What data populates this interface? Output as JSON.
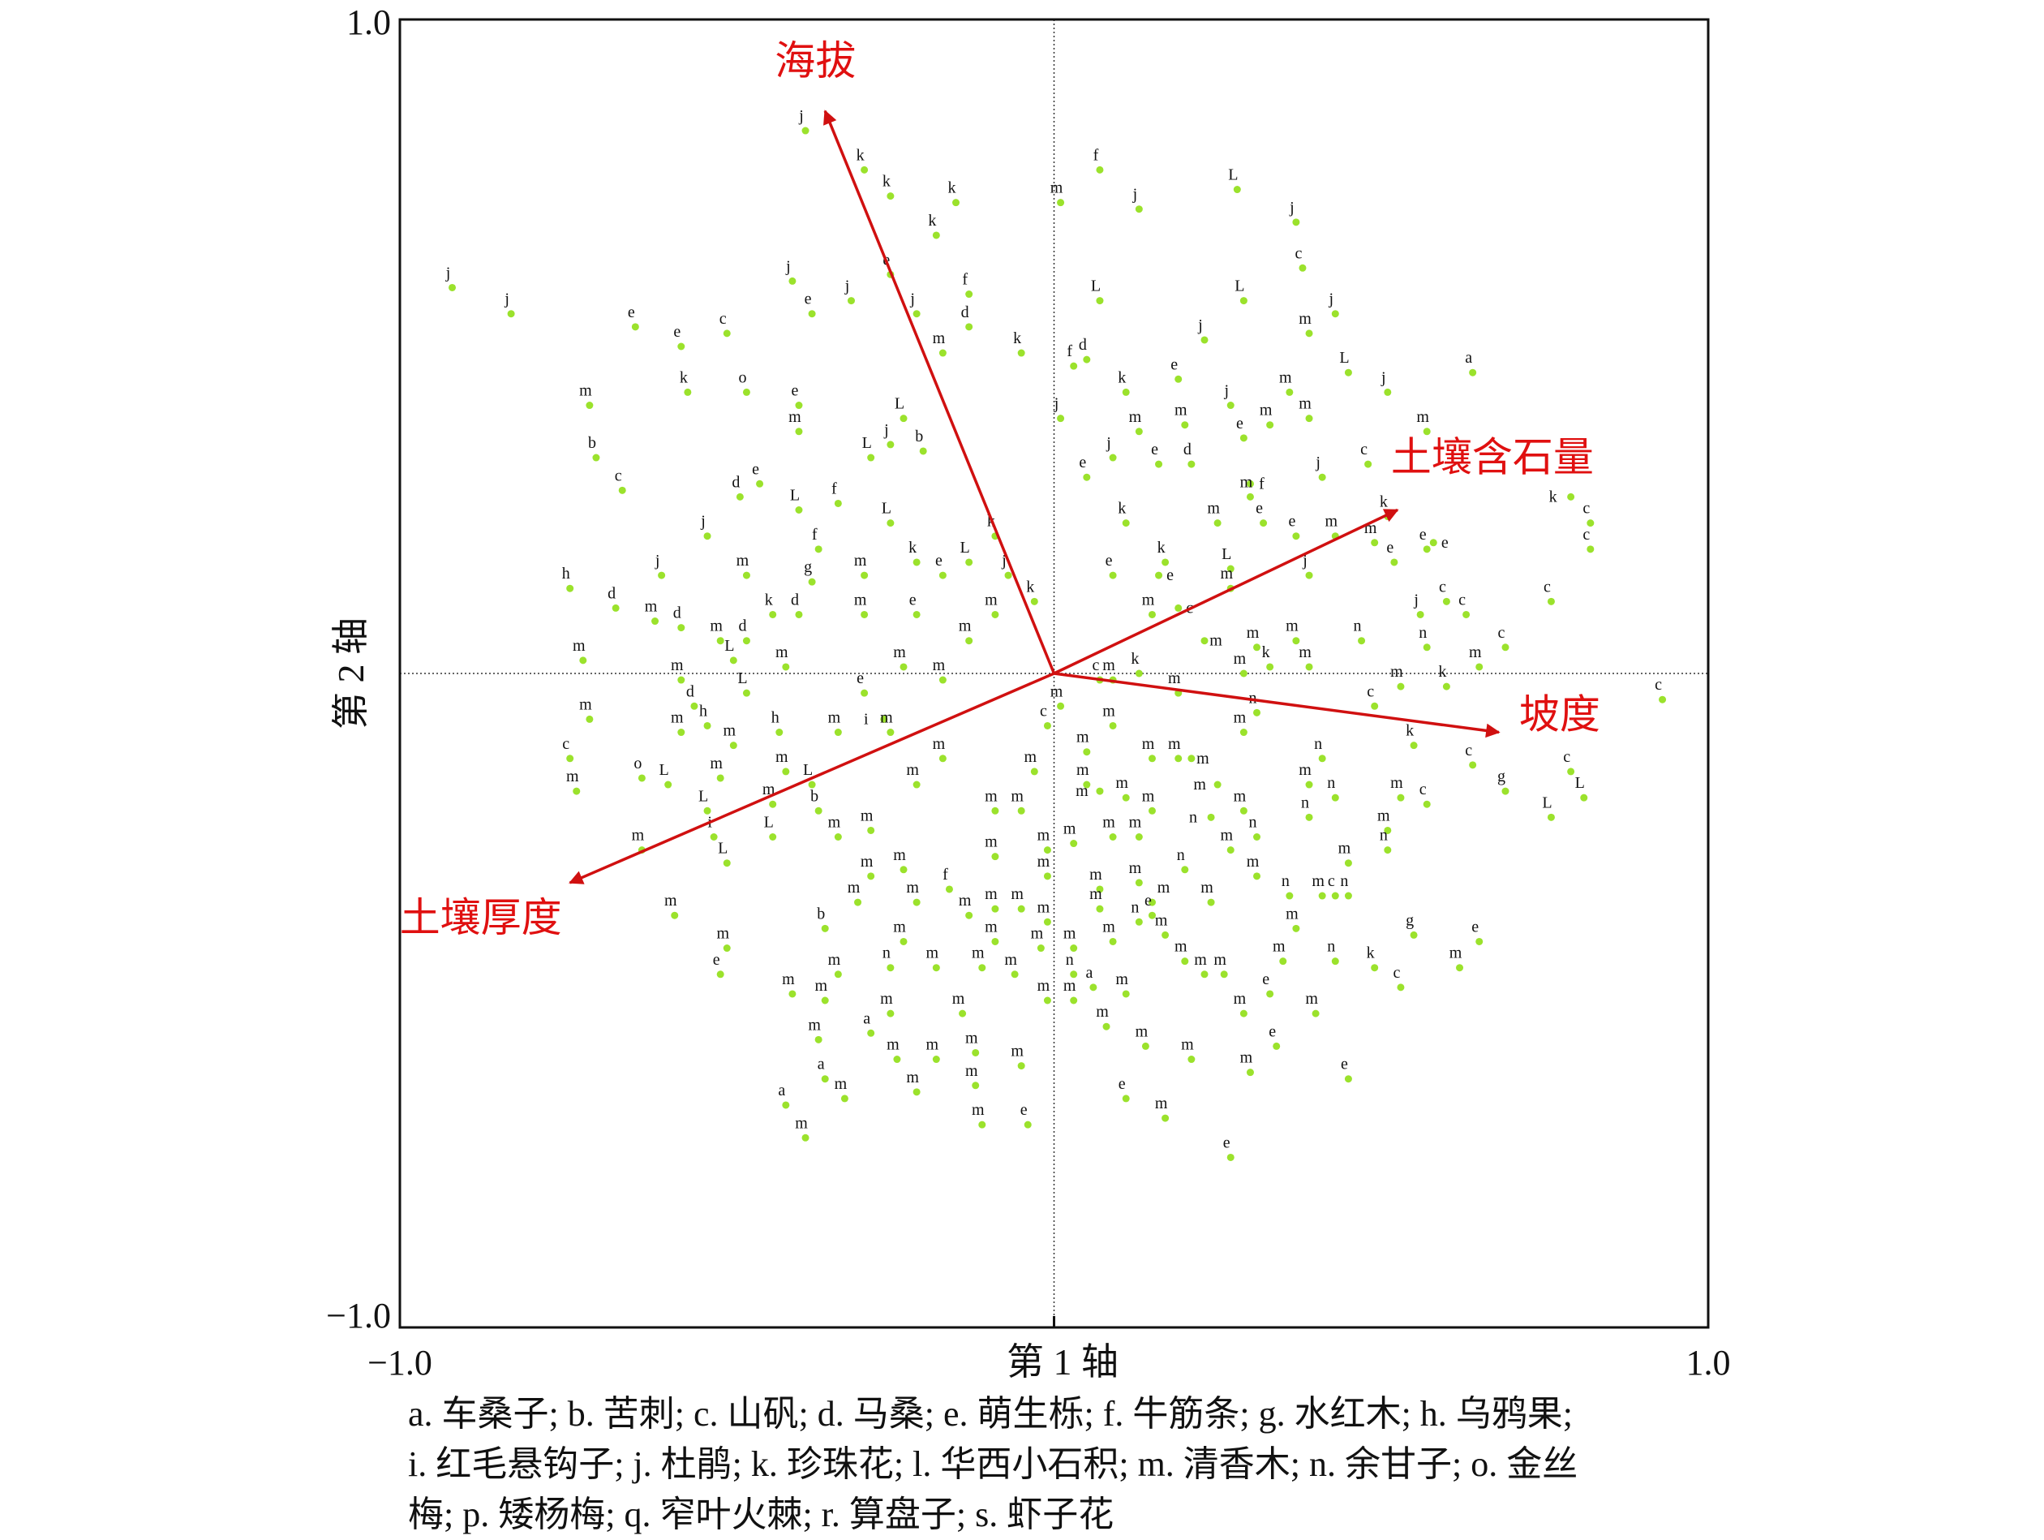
{
  "chart_data": {
    "type": "scatter",
    "subtype": "CCA ordination biplot",
    "xlabel": "第 1 轴",
    "ylabel": "第 2 轴",
    "xlim": [
      -1.0,
      1.0
    ],
    "ylim": [
      -1.0,
      1.0
    ],
    "x_ticks": [
      "−1.0",
      "1.0"
    ],
    "y_ticks": [
      "1.0",
      "−1.0"
    ],
    "grid": false,
    "colors": {
      "point": "#9be22c",
      "arrow": "#d01010",
      "label": "#e01010",
      "frame": "#111111"
    },
    "env_vectors": [
      {
        "name": "海拔",
        "x": -0.35,
        "y": 0.86
      },
      {
        "name": "土壤含石量",
        "x": 0.525,
        "y": 0.25
      },
      {
        "name": "坡度",
        "x": 0.68,
        "y": -0.09
      },
      {
        "name": "土壤厚度",
        "x": -0.74,
        "y": -0.32
      }
    ],
    "points": [
      [
        -0.92,
        0.59,
        "j"
      ],
      [
        -0.83,
        0.55,
        "j"
      ],
      [
        -0.38,
        0.83,
        "j"
      ],
      [
        -0.29,
        0.77,
        "k"
      ],
      [
        -0.25,
        0.73,
        "k"
      ],
      [
        -0.15,
        0.72,
        "k"
      ],
      [
        -0.18,
        0.67,
        "k"
      ],
      [
        0.07,
        0.77,
        "f"
      ],
      [
        0.28,
        0.74,
        "L"
      ],
      [
        0.37,
        0.69,
        "j"
      ],
      [
        0.01,
        0.72,
        "m"
      ],
      [
        0.13,
        0.71,
        "j"
      ],
      [
        -0.64,
        0.53,
        "e"
      ],
      [
        -0.57,
        0.5,
        "e"
      ],
      [
        -0.71,
        0.41,
        "m"
      ],
      [
        -0.7,
        0.33,
        "b"
      ],
      [
        -0.66,
        0.28,
        "c"
      ],
      [
        -0.74,
        0.13,
        "h"
      ],
      [
        -0.67,
        0.1,
        "d"
      ],
      [
        -0.72,
        0.02,
        "m"
      ],
      [
        -0.71,
        -0.07,
        "m"
      ],
      [
        -0.74,
        -0.13,
        "c"
      ],
      [
        -0.73,
        -0.18,
        "m"
      ],
      [
        -0.63,
        -0.27,
        "m"
      ],
      [
        -0.58,
        -0.37,
        "m"
      ],
      [
        -0.5,
        -0.42,
        "m"
      ],
      [
        -0.51,
        -0.46,
        "e"
      ],
      [
        -0.4,
        -0.49,
        "m"
      ],
      [
        -0.41,
        -0.66,
        "a"
      ],
      [
        -0.38,
        -0.71,
        "m"
      ],
      [
        -0.04,
        -0.69,
        "e"
      ],
      [
        0.27,
        -0.74,
        "e"
      ],
      [
        0.45,
        -0.62,
        "e"
      ],
      [
        0.65,
        -0.41,
        "e"
      ],
      [
        0.62,
        -0.45,
        "m"
      ],
      [
        0.55,
        -0.4,
        "g"
      ],
      [
        0.53,
        -0.48,
        "c"
      ],
      [
        0.64,
        0.46,
        "a"
      ],
      [
        0.82,
        0.23,
        "c"
      ],
      [
        0.82,
        0.19,
        "c"
      ],
      [
        0.79,
        0.27,
        "k"
      ],
      [
        0.93,
        -0.04,
        "c"
      ],
      [
        0.76,
        0.11,
        "c"
      ],
      [
        0.81,
        -0.19,
        "L"
      ],
      [
        0.76,
        -0.22,
        "L"
      ],
      [
        0.79,
        -0.15,
        "c"
      ],
      [
        0.69,
        -0.18,
        "g"
      ],
      [
        0.65,
        0.01,
        "m"
      ],
      [
        0.69,
        0.04,
        "c"
      ],
      [
        0.57,
        0.37,
        "m"
      ],
      [
        0.45,
        0.46,
        "L"
      ],
      [
        0.51,
        0.43,
        "j"
      ],
      [
        0.43,
        0.55,
        "j"
      ],
      [
        0.38,
        0.62,
        "c"
      ],
      [
        0.39,
        0.52,
        "m"
      ],
      [
        0.15,
        -0.37,
        "e"
      ],
      [
        0.01,
        -0.05,
        "m"
      ],
      [
        0.05,
        -0.17,
        "m"
      ],
      [
        -0.01,
        -0.27,
        "m"
      ],
      [
        0.07,
        -0.33,
        "m"
      ],
      [
        -0.09,
        -0.21,
        "m"
      ],
      [
        -0.17,
        -0.13,
        "m"
      ],
      [
        -0.21,
        -0.35,
        "m"
      ],
      [
        -0.09,
        -0.41,
        "m"
      ],
      [
        0.03,
        -0.5,
        "m"
      ],
      [
        0.15,
        -0.21,
        "m"
      ],
      [
        0.19,
        -0.13,
        "m"
      ],
      [
        0.29,
        -0.09,
        "m"
      ],
      [
        0.31,
        -0.25,
        "n"
      ],
      [
        0.41,
        -0.13,
        "n"
      ],
      [
        0.43,
        -0.19,
        "n"
      ],
      [
        0.45,
        -0.29,
        "m"
      ],
      [
        0.51,
        -0.27,
        "n"
      ],
      [
        0.55,
        -0.11,
        "k"
      ],
      [
        0.49,
        -0.05,
        "c"
      ],
      [
        0.6,
        -0.02,
        "k"
      ],
      [
        0.47,
        0.05,
        "n"
      ],
      [
        0.37,
        0.05,
        "m"
      ],
      [
        0.27,
        0.13,
        "m"
      ],
      [
        0.37,
        0.21,
        "e"
      ],
      [
        0.39,
        0.15,
        "j"
      ],
      [
        0.51,
        0.24,
        "k"
      ],
      [
        0.57,
        0.19,
        "e"
      ],
      [
        0.43,
        0.21,
        "m"
      ],
      [
        0.27,
        0.16,
        "L"
      ],
      [
        0.15,
        0.09,
        "m"
      ],
      [
        0.09,
        0.15,
        "e"
      ],
      [
        0.11,
        0.23,
        "k"
      ],
      [
        0.05,
        0.3,
        "e"
      ],
      [
        0.09,
        0.33,
        "j"
      ],
      [
        0.13,
        0.37,
        "m"
      ],
      [
        0.11,
        0.43,
        "k"
      ],
      [
        0.19,
        0.45,
        "e"
      ],
      [
        0.29,
        0.57,
        "L"
      ],
      [
        0.23,
        0.51,
        "j"
      ],
      [
        0.05,
        0.48,
        "d"
      ],
      [
        0.03,
        0.47,
        "f"
      ],
      [
        0.01,
        0.39,
        "j"
      ],
      [
        0.07,
        0.57,
        "L"
      ],
      [
        -0.05,
        0.49,
        "k"
      ],
      [
        -0.13,
        0.53,
        "d"
      ],
      [
        -0.17,
        0.49,
        "m"
      ],
      [
        -0.13,
        0.58,
        "f"
      ],
      [
        -0.21,
        0.55,
        "j"
      ],
      [
        -0.25,
        0.61,
        "e"
      ],
      [
        -0.31,
        0.57,
        "j"
      ],
      [
        -0.37,
        0.55,
        "e"
      ],
      [
        -0.4,
        0.6,
        "j"
      ],
      [
        -0.5,
        0.52,
        "c"
      ],
      [
        -0.56,
        0.43,
        "k"
      ],
      [
        -0.47,
        0.43,
        "o"
      ],
      [
        -0.39,
        0.41,
        "e"
      ],
      [
        -0.39,
        0.37,
        "m"
      ],
      [
        -0.23,
        0.39,
        "L"
      ],
      [
        -0.25,
        0.35,
        "j"
      ],
      [
        -0.28,
        0.33,
        "L"
      ],
      [
        -0.2,
        0.34,
        "b"
      ],
      [
        -0.45,
        0.29,
        "e"
      ],
      [
        -0.48,
        0.27,
        "d"
      ],
      [
        -0.39,
        0.25,
        "L"
      ],
      [
        -0.33,
        0.26,
        "f"
      ],
      [
        -0.53,
        0.21,
        "j"
      ],
      [
        -0.36,
        0.19,
        "f"
      ],
      [
        -0.6,
        0.15,
        "j"
      ],
      [
        -0.47,
        0.15,
        "m"
      ],
      [
        -0.37,
        0.14,
        "g"
      ],
      [
        -0.29,
        0.15,
        "m"
      ],
      [
        -0.25,
        0.23,
        "L"
      ],
      [
        -0.21,
        0.17,
        "k"
      ],
      [
        -0.17,
        0.15,
        "e"
      ],
      [
        -0.13,
        0.17,
        "L"
      ],
      [
        -0.09,
        0.21,
        "k"
      ],
      [
        -0.07,
        0.15,
        "j"
      ],
      [
        -0.09,
        0.09,
        "m"
      ],
      [
        -0.03,
        0.11,
        "k"
      ],
      [
        -0.13,
        0.05,
        "m"
      ],
      [
        -0.21,
        0.09,
        "e"
      ],
      [
        -0.29,
        0.09,
        "m"
      ],
      [
        -0.39,
        0.09,
        "d"
      ],
      [
        -0.43,
        0.09,
        "k"
      ],
      [
        -0.51,
        0.05,
        "m"
      ],
      [
        -0.47,
        0.05,
        "d"
      ],
      [
        -0.57,
        0.07,
        "d"
      ],
      [
        -0.61,
        0.08,
        "m"
      ],
      [
        -0.49,
        0.02,
        "L"
      ],
      [
        -0.57,
        -0.01,
        "m"
      ],
      [
        -0.55,
        -0.05,
        "d"
      ],
      [
        -0.47,
        -0.03,
        "L"
      ],
      [
        -0.41,
        0.01,
        "m"
      ],
      [
        -0.53,
        -0.08,
        "h"
      ],
      [
        -0.57,
        -0.09,
        "m"
      ],
      [
        -0.49,
        -0.11,
        "m"
      ],
      [
        -0.42,
        -0.09,
        "h"
      ],
      [
        -0.41,
        -0.15,
        "m"
      ],
      [
        -0.37,
        -0.17,
        "L"
      ],
      [
        -0.33,
        -0.09,
        "m"
      ],
      [
        -0.29,
        -0.03,
        "e"
      ],
      [
        -0.23,
        0.01,
        "m"
      ],
      [
        -0.17,
        -0.01,
        "m"
      ],
      [
        -0.25,
        -0.09,
        "m"
      ],
      [
        -0.26,
        -0.07,
        "i"
      ],
      [
        -0.21,
        -0.17,
        "m"
      ],
      [
        -0.59,
        -0.17,
        "L"
      ],
      [
        -0.53,
        -0.21,
        "L"
      ],
      [
        -0.63,
        -0.16,
        "o"
      ],
      [
        -0.52,
        -0.25,
        "i"
      ],
      [
        -0.5,
        -0.29,
        "L"
      ],
      [
        -0.43,
        -0.25,
        "L"
      ],
      [
        -0.51,
        -0.16,
        "m"
      ],
      [
        -0.43,
        -0.2,
        "m"
      ],
      [
        -0.36,
        -0.21,
        "b"
      ],
      [
        -0.33,
        -0.25,
        "m"
      ],
      [
        -0.28,
        -0.24,
        "m"
      ],
      [
        -0.28,
        -0.31,
        "m"
      ],
      [
        -0.23,
        -0.3,
        "m"
      ],
      [
        -0.3,
        -0.35,
        "m"
      ],
      [
        -0.16,
        -0.33,
        "f"
      ],
      [
        -0.35,
        -0.39,
        "b"
      ],
      [
        -0.23,
        -0.41,
        "m"
      ],
      [
        -0.18,
        -0.45,
        "m"
      ],
      [
        -0.25,
        -0.45,
        "n"
      ],
      [
        -0.33,
        -0.46,
        "m"
      ],
      [
        -0.35,
        -0.5,
        "m"
      ],
      [
        -0.25,
        -0.52,
        "m"
      ],
      [
        -0.14,
        -0.52,
        "m"
      ],
      [
        -0.28,
        -0.55,
        "a"
      ],
      [
        -0.36,
        -0.56,
        "m"
      ],
      [
        -0.24,
        -0.59,
        "m"
      ],
      [
        -0.18,
        -0.59,
        "m"
      ],
      [
        -0.12,
        -0.58,
        "m"
      ],
      [
        -0.05,
        -0.6,
        "m"
      ],
      [
        -0.35,
        -0.62,
        "a"
      ],
      [
        -0.21,
        -0.64,
        "m"
      ],
      [
        -0.12,
        -0.63,
        "m"
      ],
      [
        -0.32,
        -0.65,
        "m"
      ],
      [
        -0.11,
        -0.69,
        "m"
      ],
      [
        -0.01,
        -0.38,
        "m"
      ],
      [
        0.03,
        -0.46,
        "n"
      ],
      [
        0.06,
        -0.48,
        "a"
      ],
      [
        0.11,
        -0.49,
        "m"
      ],
      [
        0.08,
        -0.54,
        "m"
      ],
      [
        0.14,
        -0.57,
        "m"
      ],
      [
        0.11,
        -0.65,
        "e"
      ],
      [
        0.17,
        -0.68,
        "m"
      ],
      [
        0.21,
        -0.59,
        "m"
      ],
      [
        0.3,
        -0.61,
        "m"
      ],
      [
        0.34,
        -0.57,
        "e"
      ],
      [
        0.4,
        -0.52,
        "m"
      ],
      [
        0.29,
        -0.52,
        "m"
      ],
      [
        0.33,
        -0.49,
        "e"
      ],
      [
        0.35,
        -0.44,
        "m"
      ],
      [
        0.23,
        -0.46,
        "m"
      ],
      [
        0.26,
        -0.46,
        "m"
      ],
      [
        0.2,
        -0.44,
        "m"
      ],
      [
        0.17,
        -0.4,
        "m"
      ],
      [
        0.13,
        -0.38,
        "n"
      ],
      [
        0.24,
        -0.35,
        "m"
      ],
      [
        0.31,
        -0.31,
        "m"
      ],
      [
        0.36,
        -0.34,
        "n"
      ],
      [
        0.43,
        -0.34,
        "c"
      ],
      [
        0.45,
        -0.34,
        "n"
      ],
      [
        0.49,
        -0.45,
        "k"
      ],
      [
        0.43,
        -0.44,
        "n"
      ],
      [
        0.37,
        -0.39,
        "m"
      ],
      [
        0.41,
        -0.34,
        "m"
      ],
      [
        0.2,
        -0.3,
        "n"
      ],
      [
        0.27,
        -0.27,
        "m"
      ],
      [
        0.29,
        -0.21,
        "m"
      ],
      [
        0.39,
        -0.17,
        "m"
      ],
      [
        0.39,
        -0.22,
        "n"
      ],
      [
        0.51,
        -0.24,
        "m"
      ],
      [
        0.57,
        -0.2,
        "c"
      ],
      [
        0.53,
        -0.19,
        "m"
      ],
      [
        0.64,
        -0.14,
        "c"
      ],
      [
        0.53,
        -0.02,
        "m"
      ],
      [
        0.57,
        0.04,
        "n"
      ],
      [
        0.6,
        0.11,
        "c"
      ],
      [
        0.56,
        0.09,
        "j"
      ],
      [
        0.63,
        0.09,
        "c"
      ],
      [
        0.52,
        0.17,
        "e"
      ],
      [
        0.58,
        0.2,
        "e"
      ],
      [
        0.49,
        0.2,
        "m"
      ],
      [
        0.48,
        0.32,
        "c"
      ],
      [
        0.41,
        0.3,
        "j"
      ],
      [
        0.33,
        0.38,
        "m"
      ],
      [
        0.39,
        0.39,
        "m"
      ],
      [
        0.29,
        0.36,
        "e"
      ],
      [
        0.36,
        0.43,
        "m"
      ],
      [
        0.27,
        0.41,
        "j"
      ],
      [
        0.2,
        0.38,
        "m"
      ],
      [
        0.16,
        0.32,
        "e"
      ],
      [
        0.3,
        0.27,
        "m"
      ],
      [
        0.21,
        0.32,
        "d"
      ],
      [
        0.3,
        0.29,
        "f"
      ],
      [
        0.32,
        0.23,
        "e"
      ],
      [
        0.25,
        0.23,
        "m"
      ],
      [
        0.17,
        0.17,
        "k"
      ],
      [
        0.16,
        0.15,
        "e"
      ],
      [
        0.19,
        0.1,
        "c"
      ],
      [
        0.23,
        0.05,
        "m"
      ],
      [
        0.31,
        0.04,
        "m"
      ],
      [
        0.29,
        0.0,
        "m"
      ],
      [
        0.33,
        0.01,
        "k"
      ],
      [
        0.39,
        0.01,
        "m"
      ],
      [
        0.31,
        -0.06,
        "n"
      ],
      [
        0.19,
        -0.03,
        "m"
      ],
      [
        0.13,
        0.0,
        "k"
      ],
      [
        0.09,
        -0.01,
        "m"
      ],
      [
        0.07,
        -0.01,
        "c"
      ],
      [
        0.09,
        -0.08,
        "m"
      ],
      [
        0.05,
        -0.12,
        "m"
      ],
      [
        -0.01,
        -0.08,
        "c"
      ],
      [
        -0.03,
        -0.15,
        "m"
      ],
      [
        -0.05,
        -0.21,
        "m"
      ],
      [
        -0.09,
        -0.28,
        "m"
      ],
      [
        -0.01,
        -0.31,
        "m"
      ],
      [
        0.03,
        -0.26,
        "m"
      ],
      [
        0.09,
        -0.25,
        "m"
      ],
      [
        0.13,
        -0.25,
        "m"
      ],
      [
        0.11,
        -0.19,
        "m"
      ],
      [
        0.07,
        -0.18,
        "m"
      ],
      [
        0.15,
        -0.13,
        "m"
      ],
      [
        0.21,
        -0.13,
        "m"
      ],
      [
        0.25,
        -0.17,
        "m"
      ],
      [
        0.24,
        -0.22,
        "n"
      ],
      [
        -0.05,
        -0.36,
        "m"
      ],
      [
        -0.09,
        -0.36,
        "m"
      ],
      [
        -0.13,
        -0.37,
        "m"
      ],
      [
        -0.11,
        -0.45,
        "m"
      ],
      [
        -0.06,
        -0.46,
        "m"
      ],
      [
        -0.01,
        -0.5,
        "m"
      ],
      [
        -0.02,
        -0.42,
        "m"
      ],
      [
        0.03,
        -0.42,
        "m"
      ],
      [
        0.09,
        -0.41,
        "m"
      ],
      [
        0.07,
        -0.36,
        "m"
      ],
      [
        0.13,
        -0.32,
        "m"
      ],
      [
        0.15,
        -0.35,
        "m"
      ]
    ]
  },
  "legend": {
    "lines": [
      "a. 车桑子; b. 苦刺; c. 山矾; d. 马桑; e. 萌生栎; f. 牛筋条; g. 水红木; h. 乌鸦果;",
      "i. 红毛悬钩子; j. 杜鹃; k. 珍珠花; l. 华西小石积; m. 清香木; n. 余甘子; o. 金丝",
      "梅; p. 矮杨梅; q. 窄叶火棘; r. 算盘子; s. 虾子花"
    ]
  }
}
